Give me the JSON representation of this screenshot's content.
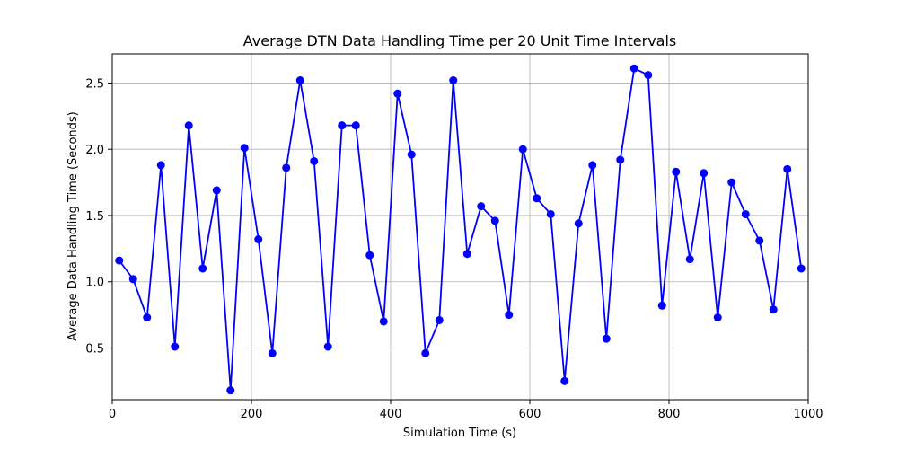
{
  "chart_data": {
    "type": "line",
    "title": "Average DTN Data Handling Time per 20 Unit Time Intervals",
    "xlabel": "Simulation Time (s)",
    "ylabel": "Average Data Handling Time (Seconds)",
    "xlim": [
      0,
      1000
    ],
    "ylim": [
      0.11,
      2.72
    ],
    "xticks": [
      0,
      200,
      400,
      600,
      800,
      1000
    ],
    "xtick_labels": [
      "0",
      "200",
      "400",
      "600",
      "800",
      "1000"
    ],
    "yticks": [
      0.5,
      1.0,
      1.5,
      2.0,
      2.5
    ],
    "ytick_labels": [
      "0.5",
      "1.0",
      "1.5",
      "2.0",
      "2.5"
    ],
    "grid": true,
    "series": [
      {
        "color": "#0000ff",
        "marker": "circle",
        "x": [
          10,
          30,
          50,
          70,
          90,
          110,
          130,
          150,
          170,
          190,
          210,
          230,
          250,
          270,
          290,
          310,
          330,
          350,
          370,
          390,
          410,
          430,
          450,
          470,
          490,
          510,
          530,
          550,
          570,
          590,
          610,
          630,
          650,
          670,
          690,
          710,
          730,
          750,
          770,
          790,
          810,
          830,
          850,
          870,
          890,
          910,
          930,
          950,
          970,
          990
        ],
        "y": [
          1.16,
          1.02,
          0.73,
          1.88,
          0.51,
          2.18,
          1.1,
          1.69,
          0.18,
          2.01,
          1.32,
          0.46,
          1.86,
          2.52,
          1.91,
          0.51,
          2.18,
          2.18,
          1.2,
          0.7,
          2.42,
          1.96,
          0.46,
          0.71,
          2.52,
          1.21,
          1.57,
          1.46,
          0.75,
          2.0,
          1.63,
          1.51,
          0.25,
          1.44,
          1.88,
          0.57,
          1.92,
          2.61,
          2.56,
          0.82,
          1.83,
          1.17,
          1.82,
          0.73,
          1.75,
          1.51,
          1.31,
          0.79,
          1.85,
          1.1
        ]
      }
    ]
  }
}
